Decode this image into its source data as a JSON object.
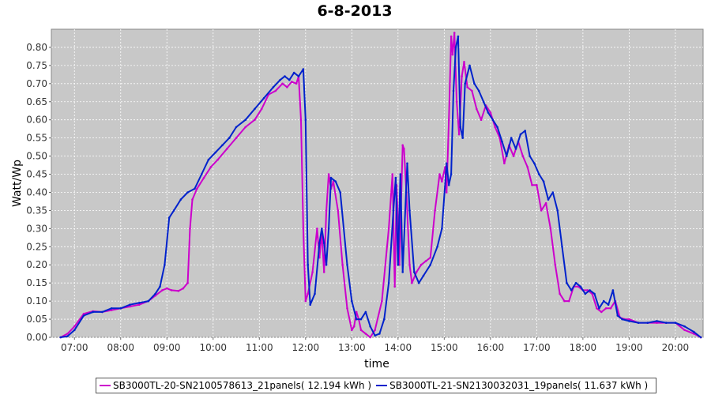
{
  "chart_data": {
    "type": "line",
    "title": "6-8-2013",
    "xlabel": "time",
    "ylabel": "Watt/Wp",
    "xlim": [
      6.5,
      20.6
    ],
    "ylim": [
      0.0,
      0.85
    ],
    "xticks": [
      "07:00",
      "08:00",
      "09:00",
      "10:00",
      "11:00",
      "12:00",
      "13:00",
      "14:00",
      "15:00",
      "16:00",
      "17:00",
      "18:00",
      "19:00",
      "20:00"
    ],
    "yticks": [
      "0.00",
      "0.05",
      "0.10",
      "0.15",
      "0.20",
      "0.25",
      "0.30",
      "0.35",
      "0.40",
      "0.45",
      "0.50",
      "0.55",
      "0.60",
      "0.65",
      "0.70",
      "0.75",
      "0.80"
    ],
    "grid": true,
    "legend_position": "bottom",
    "plot_background": "#c8c8c8",
    "series": [
      {
        "name": "SB3000TL-20-SN2100578613_21panels( 12.194 kWh )",
        "color": "#cc00cc",
        "points": [
          [
            6.7,
            0.0
          ],
          [
            6.85,
            0.01
          ],
          [
            7.0,
            0.03
          ],
          [
            7.2,
            0.065
          ],
          [
            7.4,
            0.072
          ],
          [
            7.6,
            0.07
          ],
          [
            7.8,
            0.075
          ],
          [
            8.0,
            0.08
          ],
          [
            8.2,
            0.085
          ],
          [
            8.4,
            0.09
          ],
          [
            8.6,
            0.1
          ],
          [
            8.75,
            0.115
          ],
          [
            8.9,
            0.13
          ],
          [
            9.0,
            0.135
          ],
          [
            9.1,
            0.13
          ],
          [
            9.25,
            0.128
          ],
          [
            9.35,
            0.135
          ],
          [
            9.45,
            0.15
          ],
          [
            9.5,
            0.3
          ],
          [
            9.55,
            0.38
          ],
          [
            9.65,
            0.41
          ],
          [
            9.8,
            0.44
          ],
          [
            9.95,
            0.47
          ],
          [
            10.1,
            0.49
          ],
          [
            10.3,
            0.52
          ],
          [
            10.5,
            0.55
          ],
          [
            10.7,
            0.58
          ],
          [
            10.9,
            0.6
          ],
          [
            11.05,
            0.63
          ],
          [
            11.2,
            0.67
          ],
          [
            11.35,
            0.68
          ],
          [
            11.5,
            0.7
          ],
          [
            11.6,
            0.69
          ],
          [
            11.7,
            0.705
          ],
          [
            11.8,
            0.7
          ],
          [
            11.85,
            0.72
          ],
          [
            11.9,
            0.6
          ],
          [
            11.95,
            0.3
          ],
          [
            12.0,
            0.1
          ],
          [
            12.05,
            0.12
          ],
          [
            12.15,
            0.18
          ],
          [
            12.25,
            0.3
          ],
          [
            12.3,
            0.22
          ],
          [
            12.35,
            0.29
          ],
          [
            12.4,
            0.18
          ],
          [
            12.45,
            0.35
          ],
          [
            12.5,
            0.45
          ],
          [
            12.55,
            0.41
          ],
          [
            12.6,
            0.43
          ],
          [
            12.7,
            0.35
          ],
          [
            12.8,
            0.2
          ],
          [
            12.9,
            0.08
          ],
          [
            13.0,
            0.02
          ],
          [
            13.05,
            0.03
          ],
          [
            13.1,
            0.07
          ],
          [
            13.15,
            0.05
          ],
          [
            13.2,
            0.02
          ],
          [
            13.3,
            0.01
          ],
          [
            13.4,
            0.0
          ],
          [
            13.5,
            0.02
          ],
          [
            13.65,
            0.1
          ],
          [
            13.8,
            0.3
          ],
          [
            13.88,
            0.45
          ],
          [
            13.93,
            0.14
          ],
          [
            13.97,
            0.42
          ],
          [
            14.03,
            0.2
          ],
          [
            14.1,
            0.53
          ],
          [
            14.13,
            0.52
          ],
          [
            14.18,
            0.4
          ],
          [
            14.25,
            0.2
          ],
          [
            14.3,
            0.15
          ],
          [
            14.4,
            0.18
          ],
          [
            14.5,
            0.2
          ],
          [
            14.6,
            0.21
          ],
          [
            14.7,
            0.22
          ],
          [
            14.8,
            0.35
          ],
          [
            14.9,
            0.45
          ],
          [
            14.95,
            0.43
          ],
          [
            15.02,
            0.47
          ],
          [
            15.05,
            0.4
          ],
          [
            15.1,
            0.6
          ],
          [
            15.15,
            0.83
          ],
          [
            15.18,
            0.78
          ],
          [
            15.22,
            0.84
          ],
          [
            15.27,
            0.65
          ],
          [
            15.32,
            0.56
          ],
          [
            15.38,
            0.72
          ],
          [
            15.43,
            0.76
          ],
          [
            15.5,
            0.69
          ],
          [
            15.6,
            0.68
          ],
          [
            15.7,
            0.63
          ],
          [
            15.8,
            0.6
          ],
          [
            15.9,
            0.64
          ],
          [
            16.0,
            0.62
          ],
          [
            16.1,
            0.58
          ],
          [
            16.2,
            0.55
          ],
          [
            16.3,
            0.48
          ],
          [
            16.4,
            0.53
          ],
          [
            16.5,
            0.5
          ],
          [
            16.6,
            0.54
          ],
          [
            16.7,
            0.5
          ],
          [
            16.8,
            0.47
          ],
          [
            16.9,
            0.42
          ],
          [
            17.0,
            0.42
          ],
          [
            17.1,
            0.35
          ],
          [
            17.2,
            0.37
          ],
          [
            17.3,
            0.3
          ],
          [
            17.4,
            0.2
          ],
          [
            17.5,
            0.12
          ],
          [
            17.6,
            0.1
          ],
          [
            17.7,
            0.1
          ],
          [
            17.8,
            0.14
          ],
          [
            17.9,
            0.14
          ],
          [
            18.0,
            0.13
          ],
          [
            18.1,
            0.13
          ],
          [
            18.2,
            0.12
          ],
          [
            18.3,
            0.08
          ],
          [
            18.4,
            0.07
          ],
          [
            18.5,
            0.08
          ],
          [
            18.6,
            0.08
          ],
          [
            18.7,
            0.1
          ],
          [
            18.8,
            0.055
          ],
          [
            18.9,
            0.05
          ],
          [
            19.0,
            0.05
          ],
          [
            19.2,
            0.04
          ],
          [
            19.4,
            0.04
          ],
          [
            19.6,
            0.04
          ],
          [
            19.8,
            0.04
          ],
          [
            20.0,
            0.04
          ],
          [
            20.2,
            0.02
          ],
          [
            20.4,
            0.01
          ],
          [
            20.55,
            0.0
          ]
        ]
      },
      {
        "name": "SB3000TL-21-SN2130032031_19panels( 11.637 kWh )",
        "color": "#0022cc",
        "points": [
          [
            6.7,
            0.0
          ],
          [
            6.85,
            0.003
          ],
          [
            7.0,
            0.02
          ],
          [
            7.2,
            0.06
          ],
          [
            7.4,
            0.07
          ],
          [
            7.6,
            0.07
          ],
          [
            7.8,
            0.08
          ],
          [
            8.0,
            0.08
          ],
          [
            8.2,
            0.09
          ],
          [
            8.4,
            0.095
          ],
          [
            8.6,
            0.1
          ],
          [
            8.75,
            0.12
          ],
          [
            8.85,
            0.14
          ],
          [
            8.95,
            0.2
          ],
          [
            9.05,
            0.33
          ],
          [
            9.15,
            0.35
          ],
          [
            9.3,
            0.38
          ],
          [
            9.45,
            0.4
          ],
          [
            9.6,
            0.41
          ],
          [
            9.75,
            0.45
          ],
          [
            9.9,
            0.49
          ],
          [
            10.05,
            0.51
          ],
          [
            10.2,
            0.53
          ],
          [
            10.35,
            0.55
          ],
          [
            10.5,
            0.58
          ],
          [
            10.7,
            0.6
          ],
          [
            10.9,
            0.63
          ],
          [
            11.1,
            0.66
          ],
          [
            11.3,
            0.69
          ],
          [
            11.45,
            0.71
          ],
          [
            11.55,
            0.72
          ],
          [
            11.65,
            0.71
          ],
          [
            11.75,
            0.73
          ],
          [
            11.85,
            0.72
          ],
          [
            11.95,
            0.74
          ],
          [
            12.0,
            0.6
          ],
          [
            12.05,
            0.2
          ],
          [
            12.1,
            0.09
          ],
          [
            12.2,
            0.12
          ],
          [
            12.3,
            0.26
          ],
          [
            12.35,
            0.3
          ],
          [
            12.4,
            0.26
          ],
          [
            12.45,
            0.2
          ],
          [
            12.5,
            0.3
          ],
          [
            12.55,
            0.44
          ],
          [
            12.65,
            0.43
          ],
          [
            12.75,
            0.4
          ],
          [
            12.9,
            0.2
          ],
          [
            13.0,
            0.1
          ],
          [
            13.1,
            0.05
          ],
          [
            13.2,
            0.05
          ],
          [
            13.3,
            0.07
          ],
          [
            13.4,
            0.03
          ],
          [
            13.5,
            0.005
          ],
          [
            13.6,
            0.01
          ],
          [
            13.7,
            0.05
          ],
          [
            13.8,
            0.15
          ],
          [
            13.9,
            0.35
          ],
          [
            13.95,
            0.44
          ],
          [
            14.0,
            0.2
          ],
          [
            14.05,
            0.45
          ],
          [
            14.1,
            0.18
          ],
          [
            14.2,
            0.48
          ],
          [
            14.25,
            0.35
          ],
          [
            14.35,
            0.18
          ],
          [
            14.45,
            0.15
          ],
          [
            14.55,
            0.17
          ],
          [
            14.7,
            0.2
          ],
          [
            14.85,
            0.25
          ],
          [
            14.95,
            0.3
          ],
          [
            15.05,
            0.48
          ],
          [
            15.1,
            0.42
          ],
          [
            15.15,
            0.45
          ],
          [
            15.2,
            0.68
          ],
          [
            15.25,
            0.8
          ],
          [
            15.3,
            0.83
          ],
          [
            15.35,
            0.58
          ],
          [
            15.4,
            0.55
          ],
          [
            15.45,
            0.7
          ],
          [
            15.55,
            0.75
          ],
          [
            15.65,
            0.7
          ],
          [
            15.75,
            0.68
          ],
          [
            15.85,
            0.65
          ],
          [
            15.95,
            0.62
          ],
          [
            16.05,
            0.6
          ],
          [
            16.15,
            0.58
          ],
          [
            16.25,
            0.54
          ],
          [
            16.35,
            0.5
          ],
          [
            16.45,
            0.55
          ],
          [
            16.55,
            0.52
          ],
          [
            16.65,
            0.56
          ],
          [
            16.75,
            0.57
          ],
          [
            16.85,
            0.5
          ],
          [
            16.95,
            0.48
          ],
          [
            17.05,
            0.45
          ],
          [
            17.15,
            0.43
          ],
          [
            17.25,
            0.38
          ],
          [
            17.35,
            0.4
          ],
          [
            17.45,
            0.35
          ],
          [
            17.55,
            0.25
          ],
          [
            17.65,
            0.15
          ],
          [
            17.75,
            0.13
          ],
          [
            17.85,
            0.15
          ],
          [
            17.95,
            0.14
          ],
          [
            18.05,
            0.12
          ],
          [
            18.15,
            0.13
          ],
          [
            18.25,
            0.12
          ],
          [
            18.35,
            0.08
          ],
          [
            18.45,
            0.1
          ],
          [
            18.55,
            0.09
          ],
          [
            18.65,
            0.13
          ],
          [
            18.75,
            0.06
          ],
          [
            18.85,
            0.05
          ],
          [
            19.0,
            0.045
          ],
          [
            19.2,
            0.04
          ],
          [
            19.4,
            0.04
          ],
          [
            19.6,
            0.045
          ],
          [
            19.8,
            0.04
          ],
          [
            20.0,
            0.04
          ],
          [
            20.2,
            0.03
          ],
          [
            20.4,
            0.015
          ],
          [
            20.55,
            0.0
          ]
        ]
      }
    ]
  }
}
